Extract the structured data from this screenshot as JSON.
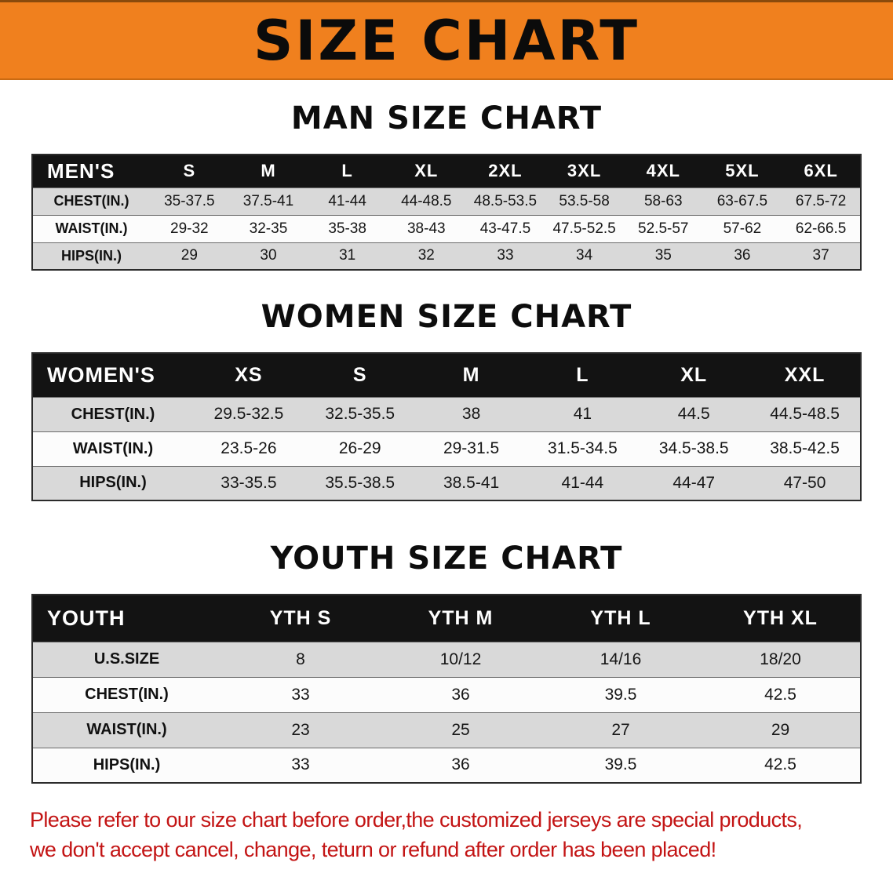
{
  "banner": {
    "title": "SIZE CHART",
    "bg_color": "#f0801e"
  },
  "sections": [
    {
      "heading": "MAN SIZE CHART",
      "table": {
        "header": [
          "MEN'S",
          "S",
          "M",
          "L",
          "XL",
          "2XL",
          "3XL",
          "4XL",
          "5XL",
          "6XL"
        ],
        "rows": [
          {
            "label": "CHEST(IN.)",
            "values": [
              "35-37.5",
              "37.5-41",
              "41-44",
              "44-48.5",
              "48.5-53.5",
              "53.5-58",
              "58-63",
              "63-67.5",
              "67.5-72"
            ]
          },
          {
            "label": "WAIST(IN.)",
            "values": [
              "29-32",
              "32-35",
              "35-38",
              "38-43",
              "43-47.5",
              "47.5-52.5",
              "52.5-57",
              "57-62",
              "62-66.5"
            ]
          },
          {
            "label": "HIPS(IN.)",
            "values": [
              "29",
              "30",
              "31",
              "32",
              "33",
              "34",
              "35",
              "36",
              "37"
            ]
          }
        ]
      }
    },
    {
      "heading": "WOMEN SIZE CHART",
      "table": {
        "header": [
          "WOMEN'S",
          "XS",
          "S",
          "M",
          "L",
          "XL",
          "XXL"
        ],
        "rows": [
          {
            "label": "CHEST(IN.)",
            "values": [
              "29.5-32.5",
              "32.5-35.5",
              "38",
              "41",
              "44.5",
              "44.5-48.5"
            ]
          },
          {
            "label": "WAIST(IN.)",
            "values": [
              "23.5-26",
              "26-29",
              "29-31.5",
              "31.5-34.5",
              "34.5-38.5",
              "38.5-42.5"
            ]
          },
          {
            "label": "HIPS(IN.)",
            "values": [
              "33-35.5",
              "35.5-38.5",
              "38.5-41",
              "41-44",
              "44-47",
              "47-50"
            ]
          }
        ]
      }
    },
    {
      "heading": "YOUTH SIZE CHART",
      "table": {
        "header": [
          "YOUTH",
          "YTH S",
          "YTH M",
          "YTH L",
          "YTH XL"
        ],
        "rows": [
          {
            "label": "U.S.SIZE",
            "values": [
              "8",
              "10/12",
              "14/16",
              "18/20"
            ]
          },
          {
            "label": "CHEST(IN.)",
            "values": [
              "33",
              "36",
              "39.5",
              "42.5"
            ]
          },
          {
            "label": "WAIST(IN.)",
            "values": [
              "23",
              "25",
              "27",
              "29"
            ]
          },
          {
            "label": "HIPS(IN.)",
            "values": [
              "33",
              "36",
              "39.5",
              "42.5"
            ]
          }
        ]
      }
    }
  ],
  "disclaimer": {
    "line1": "Please refer to our size chart before order,the customized jerseys are special products,",
    "line2": "we don't accept cancel, change, teturn or refund after order has been placed!",
    "text_color": "#c31414"
  },
  "colors": {
    "table_header_bg": "#131313",
    "row_stripe": "#d9d9d9"
  }
}
